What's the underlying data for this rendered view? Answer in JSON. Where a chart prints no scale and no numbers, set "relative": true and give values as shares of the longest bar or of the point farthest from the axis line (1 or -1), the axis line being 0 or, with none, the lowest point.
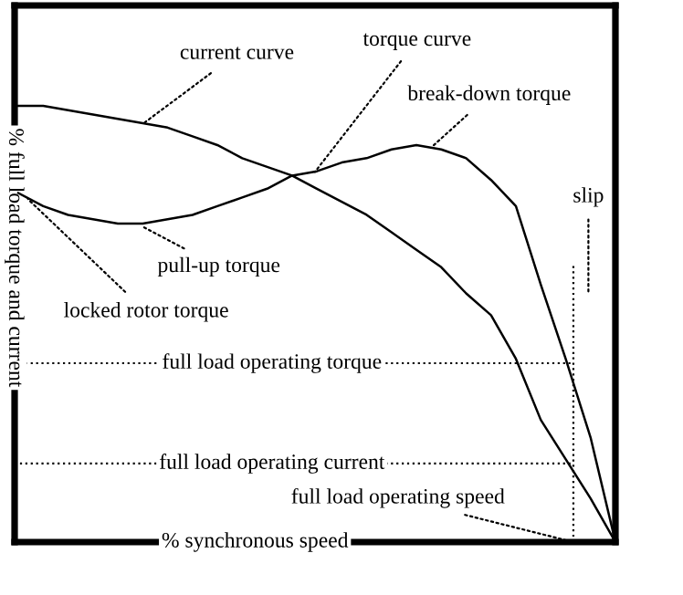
{
  "chart_data": {
    "type": "line",
    "relative": true,
    "xlabel": "% synchronous speed",
    "ylabel": "% full load torque and current",
    "categories": [
      null,
      null,
      null,
      null,
      null,
      null,
      null,
      null,
      null,
      null,
      null,
      null,
      null,
      null,
      null,
      null,
      null,
      null,
      null,
      null,
      null,
      null,
      null,
      null,
      null
    ],
    "series": [
      {
        "color": "#000000",
        "values": [
          1,
          1,
          0.99,
          0.98,
          0.97,
          0.96,
          0.95,
          0.93,
          0.91,
          0.88,
          0.86,
          0.84,
          0.81,
          0.78,
          0.75,
          0.71,
          0.67,
          0.63,
          0.57,
          0.52,
          0.42,
          0.28,
          0.19,
          0.1,
          0
        ]
      },
      {
        "color": "#000000",
        "values": [
          0.8,
          0.77,
          0.75,
          0.74,
          0.73,
          0.73,
          0.74,
          0.75,
          0.77,
          0.79,
          0.81,
          0.84,
          0.85,
          0.87,
          0.88,
          0.9,
          0.91,
          0.9,
          0.88,
          0.83,
          0.77,
          0.59,
          0.42,
          0.24,
          0
        ]
      }
    ],
    "ref_lines": [
      {
        "axis": "y",
        "value": 0.41,
        "label": "full load operating torque",
        "line_style": "dotted"
      },
      {
        "axis": "y",
        "value": 0.18,
        "label": "full load operating current",
        "line_style": "dotted"
      }
    ],
    "annotations": [
      "current curve",
      "torque curve",
      "break-down torque",
      "pull-up torque",
      "locked rotor torque",
      "slip",
      "full load operating speed"
    ],
    "legend": false,
    "marker": "none",
    "line_style": "solid"
  }
}
